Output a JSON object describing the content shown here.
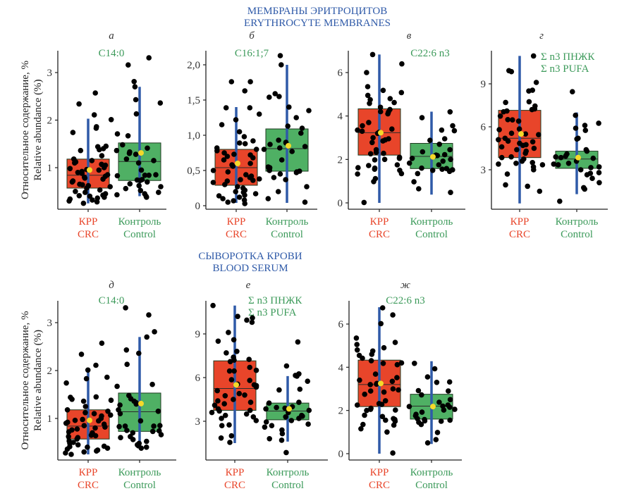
{
  "sections": {
    "top": {
      "line1": "МЕМБРАНЫ ЭРИТРОЦИТОВ",
      "line2": "ERYTHROCYTE MEMBRANES"
    },
    "bottom": {
      "line1": "СЫВОРОТКА КРОВИ",
      "line2": "BLOOD SERUM"
    }
  },
  "ylabel": {
    "line1": "Относительное содержание, %",
    "line2": "Relative abundance (%)"
  },
  "categories": [
    {
      "line1": "КРР",
      "line2": "CRC",
      "color": "#e8452a"
    },
    {
      "line1": "Контроль",
      "line2": "Control",
      "color": "#3c9a5a"
    }
  ],
  "colors": {
    "crc_box": "#e8452a",
    "control_box": "#4fb064",
    "whisker": "#2f5aa8",
    "mean_marker": "#f5d92a",
    "points": "#000000",
    "section_title": "#2f5aa8",
    "panel_title": "#3c9a5a"
  },
  "chart_data": [
    {
      "type": "box",
      "panel": "а",
      "title": [
        "C14:0"
      ],
      "section": "ERYTHROCYTE MEMBRANES",
      "ylabel": "Relative abundance (%)",
      "yticks": [
        1,
        2,
        3
      ],
      "tick_labels": [
        "1",
        "2",
        "3"
      ],
      "ylim": [
        0.2,
        3.45
      ],
      "groups": [
        {
          "name": "CRC",
          "q1": 0.57,
          "median": 0.84,
          "q3": 1.18,
          "whisker_low": 0.25,
          "whisker_high": 2.03,
          "mean": 0.95,
          "points": [
            2.57,
            2.34,
            2.11,
            2.01,
            1.86,
            1.83,
            1.74,
            1.45,
            1.44,
            1.4,
            1.38,
            1.36,
            1.25,
            1.18,
            1.15,
            1.12,
            1.1,
            1.07,
            1.05,
            1.0,
            0.98,
            0.96,
            0.95,
            0.92,
            0.9,
            0.88,
            0.85,
            0.82,
            0.8,
            0.78,
            0.76,
            0.72,
            0.7,
            0.65,
            0.64,
            0.62,
            0.6,
            0.57,
            0.53,
            0.5,
            0.48,
            0.45,
            0.42,
            0.41,
            0.4,
            0.38,
            0.36,
            0.34,
            0.32,
            0.3,
            0.28,
            0.25
          ]
        },
        {
          "name": "Control",
          "q1": 0.73,
          "median": 1.13,
          "q3": 1.52,
          "whisker_low": 0.4,
          "whisker_high": 2.7,
          "mean": 1.31,
          "points": [
            3.31,
            3.16,
            2.81,
            2.7,
            2.43,
            2.36,
            2.13,
            1.71,
            1.67,
            1.48,
            1.41,
            1.36,
            1.33,
            1.3,
            1.28,
            1.18,
            1.15,
            1.1,
            0.95,
            0.85,
            0.84,
            0.84,
            0.83,
            0.75,
            0.74,
            0.73,
            0.7,
            0.66,
            0.62,
            0.6,
            0.56,
            0.52,
            0.48,
            0.45,
            0.43,
            0.4,
            0.38
          ]
        }
      ]
    },
    {
      "type": "box",
      "panel": "б",
      "title": [
        "C16:1;7"
      ],
      "section": "ERYTHROCYTE MEMBRANES",
      "yticks": [
        0,
        0.5,
        1.0,
        1.5,
        2.0
      ],
      "tick_labels": [
        "0",
        "0,5",
        "1,0",
        "1,5",
        "2,0"
      ],
      "ylim": [
        -0.04,
        2.2
      ],
      "groups": [
        {
          "name": "CRC",
          "q1": 0.29,
          "median": 0.54,
          "q3": 0.8,
          "whisker_low": 0.04,
          "whisker_high": 1.4,
          "mean": 0.6,
          "points": [
            1.76,
            1.76,
            1.63,
            1.39,
            1.39,
            1.3,
            1.22,
            1.15,
            1.05,
            0.98,
            0.92,
            0.89,
            0.88,
            0.82,
            0.8,
            0.78,
            0.75,
            0.73,
            0.72,
            0.7,
            0.68,
            0.65,
            0.6,
            0.58,
            0.56,
            0.5,
            0.48,
            0.44,
            0.42,
            0.4,
            0.38,
            0.37,
            0.36,
            0.35,
            0.33,
            0.3,
            0.27,
            0.25,
            0.22,
            0.21,
            0.2,
            0.19,
            0.17,
            0.15,
            0.14,
            0.12,
            0.1,
            0.08,
            0.07,
            0.05,
            0.03
          ]
        },
        {
          "name": "Control",
          "q1": 0.49,
          "median": 0.81,
          "q3": 1.09,
          "whisker_low": 0.04,
          "whisker_high": 2.0,
          "mean": 0.85,
          "points": [
            2.13,
            2.0,
            1.59,
            1.55,
            1.54,
            1.4,
            1.35,
            1.25,
            1.13,
            1.1,
            1.03,
            0.93,
            0.9,
            0.89,
            0.87,
            0.84,
            0.82,
            0.8,
            0.77,
            0.65,
            0.55,
            0.54,
            0.52,
            0.5,
            0.49,
            0.48,
            0.47,
            0.45,
            0.4,
            0.37,
            0.27,
            0.2,
            0.1,
            0.05
          ]
        }
      ]
    },
    {
      "type": "box",
      "panel": "в",
      "title": [
        "C22:6 n3"
      ],
      "section": "ERYTHROCYTE MEMBRANES",
      "yticks": [
        0,
        2,
        4,
        6
      ],
      "tick_labels": [
        "0",
        "2",
        "4",
        "6"
      ],
      "ylim": [
        -0.1,
        7.0
      ],
      "groups": [
        {
          "name": "CRC",
          "q1": 2.2,
          "median": 3.23,
          "q3": 4.33,
          "whisker_low": 0.0,
          "whisker_high": 6.83,
          "mean": 3.23,
          "points": [
            6.83,
            6.4,
            6.0,
            5.35,
            5.18,
            5.08,
            4.95,
            4.8,
            4.75,
            4.62,
            4.58,
            4.4,
            4.3,
            4.2,
            4.18,
            4.1,
            3.7,
            3.55,
            3.4,
            3.35,
            3.3,
            3.25,
            3.2,
            3.0,
            2.95,
            2.9,
            2.85,
            2.78,
            2.45,
            2.33,
            2.28,
            2.26,
            2.1,
            2.05,
            2.0,
            1.98,
            1.75,
            1.72,
            1.62,
            1.6,
            1.55,
            1.5,
            1.35,
            1.33,
            1.12,
            0.98,
            0.02
          ]
        },
        {
          "name": "Control",
          "q1": 1.58,
          "median": 2.14,
          "q3": 2.74,
          "whisker_low": 0.38,
          "whisker_high": 4.2,
          "mean": 2.12,
          "points": [
            4.19,
            3.92,
            3.55,
            3.35,
            3.32,
            2.95,
            2.88,
            2.7,
            2.45,
            2.35,
            2.22,
            2.2,
            2.18,
            2.15,
            2.05,
            2.0,
            1.92,
            1.83,
            1.75,
            1.6,
            1.58,
            1.55,
            1.52,
            1.5,
            1.45,
            1.35,
            0.97,
            0.65,
            0.48
          ]
        }
      ]
    },
    {
      "type": "box",
      "panel": "г",
      "title": [
        "Σ n3 ПНЖК",
        "Σ n3 PUFA"
      ],
      "section": "ERYTHROCYTE MEMBRANES",
      "yticks": [
        3,
        6,
        9
      ],
      "tick_labels": [
        "3",
        "6",
        "9"
      ],
      "ylim": [
        0.3,
        11.2
      ],
      "groups": [
        {
          "name": "CRC",
          "q1": 3.85,
          "median": 5.2,
          "q3": 7.15,
          "whisker_low": 0.65,
          "whisker_high": 10.95,
          "mean": 5.5,
          "points": [
            10.95,
            9.92,
            9.85,
            9.1,
            8.55,
            8.5,
            7.75,
            7.7,
            7.45,
            7.25,
            7.2,
            7.1,
            7.05,
            6.75,
            6.5,
            6.48,
            6.4,
            5.85,
            5.8,
            5.55,
            5.5,
            5.45,
            5.2,
            5.1,
            5.0,
            4.95,
            4.85,
            4.75,
            4.7,
            4.6,
            4.5,
            4.4,
            4.3,
            4.15,
            3.9,
            3.85,
            3.75,
            3.6,
            3.5,
            3.45,
            3.4,
            3.35,
            3.2,
            3.0,
            2.7,
            1.95,
            1.85,
            1.5
          ]
        },
        {
          "name": "Control",
          "q1": 3.1,
          "median": 3.75,
          "q3": 4.3,
          "whisker_low": 1.3,
          "whisker_high": 7.0,
          "mean": 3.85,
          "points": [
            8.45,
            6.8,
            6.25,
            6.1,
            5.9,
            5.75,
            5.2,
            5.15,
            4.4,
            4.3,
            4.1,
            3.95,
            3.9,
            3.85,
            3.8,
            3.6,
            3.45,
            3.4,
            3.35,
            3.2,
            3.15,
            3.0,
            2.8,
            2.75,
            2.65,
            2.4,
            2.1,
            1.75,
            1.65,
            0.8
          ]
        }
      ]
    },
    {
      "type": "box",
      "panel": "д",
      "title": [
        "C14:0"
      ],
      "section": "BLOOD SERUM",
      "ylabel": "Relative abundance (%)",
      "yticks": [
        1,
        2,
        3
      ],
      "tick_labels": [
        "1",
        "2",
        "3"
      ],
      "ylim": [
        0.2,
        3.45
      ],
      "groups": [
        {
          "name": "CRC",
          "q1": 0.57,
          "median": 0.84,
          "q3": 1.18,
          "whisker_low": 0.25,
          "whisker_high": 2.03,
          "mean": 0.96,
          "points": [
            2.57,
            2.34,
            2.11,
            2.01,
            1.86,
            1.83,
            1.74,
            1.45,
            1.44,
            1.4,
            1.38,
            1.36,
            1.25,
            1.18,
            1.15,
            1.12,
            1.1,
            1.07,
            1.05,
            1.0,
            0.98,
            0.96,
            0.95,
            0.92,
            0.9,
            0.88,
            0.85,
            0.82,
            0.8,
            0.78,
            0.76,
            0.72,
            0.7,
            0.65,
            0.64,
            0.62,
            0.6,
            0.57,
            0.53,
            0.5,
            0.48,
            0.45,
            0.42,
            0.41,
            0.4,
            0.38,
            0.36,
            0.34,
            0.32,
            0.3,
            0.28,
            0.25
          ]
        },
        {
          "name": "Control",
          "q1": 0.73,
          "median": 1.14,
          "q3": 1.53,
          "whisker_low": 0.42,
          "whisker_high": 2.7,
          "mean": 1.31,
          "points": [
            3.31,
            3.16,
            2.81,
            2.7,
            2.43,
            2.36,
            2.13,
            1.71,
            1.67,
            1.48,
            1.41,
            1.36,
            1.33,
            1.3,
            1.28,
            1.18,
            1.15,
            1.1,
            0.95,
            0.85,
            0.84,
            0.84,
            0.83,
            0.75,
            0.74,
            0.73,
            0.7,
            0.66,
            0.62,
            0.6,
            0.56,
            0.52,
            0.48,
            0.45,
            0.43,
            0.4,
            0.38
          ]
        }
      ]
    },
    {
      "type": "box",
      "panel": "е",
      "title": [
        "Σ n3 ПНЖК",
        "Σ n3 PUFA"
      ],
      "section": "BLOOD SERUM",
      "yticks": [
        3,
        6,
        9
      ],
      "tick_labels": [
        "3",
        "6",
        "9"
      ],
      "ylim": [
        0.3,
        11.2
      ],
      "groups": [
        {
          "name": "CRC",
          "q1": 3.75,
          "median": 5.25,
          "q3": 7.15,
          "whisker_low": 1.5,
          "whisker_high": 10.95,
          "mean": 5.5,
          "points": [
            10.95,
            10.2,
            10.1,
            9.95,
            9.8,
            9.1,
            8.6,
            8.5,
            7.8,
            7.7,
            7.4,
            7.25,
            7.2,
            7.1,
            6.7,
            6.5,
            6.45,
            6.45,
            5.85,
            5.8,
            5.55,
            5.5,
            5.45,
            5.35,
            5.1,
            4.9,
            4.8,
            4.75,
            4.5,
            4.4,
            4.3,
            4.2,
            4.1,
            3.85,
            3.75,
            3.7,
            3.6,
            3.5,
            3.4,
            3.3,
            3.2,
            3.05,
            2.75,
            2.7,
            2.0,
            1.85,
            1.55
          ]
        },
        {
          "name": "Control",
          "q1": 3.1,
          "median": 3.7,
          "q3": 4.25,
          "whisker_low": 1.6,
          "whisker_high": 6.1,
          "mean": 3.85,
          "points": [
            8.45,
            6.8,
            6.25,
            6.15,
            6.1,
            5.75,
            5.2,
            5.15,
            4.3,
            4.25,
            4.0,
            3.95,
            3.9,
            3.85,
            3.75,
            3.6,
            3.4,
            3.35,
            3.3,
            3.2,
            3.05,
            2.95,
            2.8,
            2.7,
            2.6,
            2.4,
            2.15,
            1.8,
            1.7,
            0.85
          ]
        }
      ]
    },
    {
      "type": "box",
      "panel": "ж",
      "title": [
        "C22:6 n3"
      ],
      "section": "BLOOD SERUM",
      "yticks": [
        0,
        2,
        4,
        6
      ],
      "tick_labels": [
        "0",
        "2",
        "4",
        "6"
      ],
      "ylim": [
        -0.1,
        7.0
      ],
      "groups": [
        {
          "name": "CRC",
          "q1": 2.18,
          "median": 3.2,
          "q3": 4.33,
          "whisker_low": 0.0,
          "whisker_high": 6.78,
          "mean": 3.25,
          "points": [
            6.75,
            6.42,
            6.02,
            5.35,
            5.15,
            5.05,
            4.9,
            4.8,
            4.75,
            4.6,
            4.55,
            4.42,
            4.3,
            4.2,
            4.18,
            4.12,
            3.68,
            3.52,
            3.4,
            3.35,
            3.25,
            3.22,
            3.2,
            3.0,
            2.95,
            2.9,
            2.85,
            2.75,
            2.45,
            2.32,
            2.28,
            2.25,
            2.1,
            2.05,
            2.02,
            2.0,
            1.78,
            1.72,
            1.62,
            1.58,
            1.55,
            1.5,
            1.35,
            1.32,
            1.15,
            1.0,
            0.03
          ]
        },
        {
          "name": "Control",
          "q1": 1.6,
          "median": 2.2,
          "q3": 2.75,
          "whisker_low": 0.45,
          "whisker_high": 4.28,
          "mean": 2.18,
          "points": [
            4.18,
            3.93,
            3.55,
            3.32,
            3.3,
            2.92,
            2.9,
            2.72,
            2.5,
            2.38,
            2.25,
            2.2,
            2.18,
            2.15,
            2.05,
            2.02,
            1.92,
            1.82,
            1.75,
            1.62,
            1.58,
            1.55,
            1.52,
            1.5,
            1.45,
            1.35,
            0.98,
            0.65,
            0.5
          ]
        }
      ]
    }
  ]
}
